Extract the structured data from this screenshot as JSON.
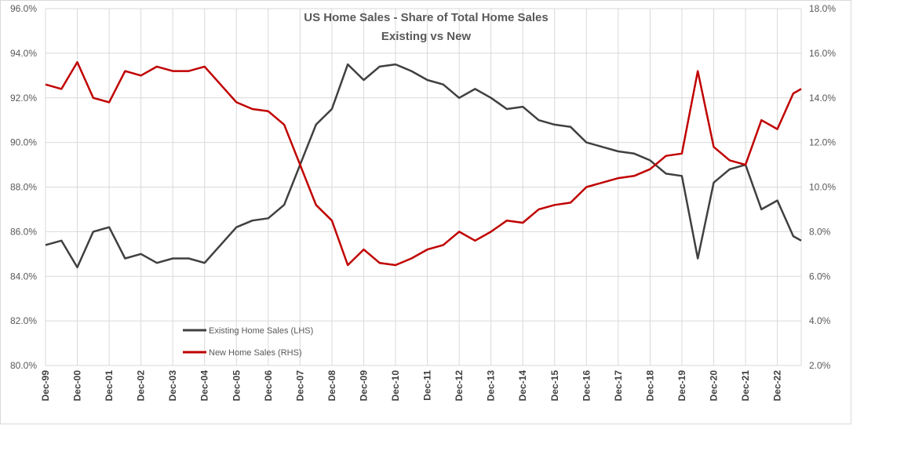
{
  "chart_data": {
    "type": "line",
    "title": "US Home Sales - Share of Total Home Sales",
    "subtitle": "Existing vs New",
    "y_left": {
      "min": 80.0,
      "max": 96.0,
      "step": 2.0,
      "tick_labels": [
        "80.0%",
        "82.0%",
        "84.0%",
        "86.0%",
        "88.0%",
        "90.0%",
        "92.0%",
        "94.0%",
        "96.0%"
      ]
    },
    "y_right": {
      "min": 2.0,
      "max": 18.0,
      "step": 2.0,
      "tick_labels": [
        "2.0%",
        "4.0%",
        "6.0%",
        "8.0%",
        "10.0%",
        "12.0%",
        "14.0%",
        "16.0%",
        "18.0%"
      ]
    },
    "x_start": "Dec-99",
    "x_end": "Sep-23",
    "x_tick_labels": [
      "Dec-99",
      "Dec-00",
      "Dec-01",
      "Dec-02",
      "Dec-03",
      "Dec-04",
      "Dec-05",
      "Dec-06",
      "Dec-07",
      "Dec-08",
      "Dec-09",
      "Dec-10",
      "Dec-11",
      "Dec-12",
      "Dec-13",
      "Dec-14",
      "Dec-15",
      "Dec-16",
      "Dec-17",
      "Dec-18",
      "Dec-19",
      "Dec-20",
      "Dec-21",
      "Dec-22"
    ],
    "grid": true,
    "legend_position": "lower-left inside plot",
    "series": [
      {
        "name": "Existing Home Sales (LHS)",
        "axis": "left",
        "color": "#404040",
        "points": [
          [
            "Dec-99",
            85.4
          ],
          [
            "Jun-00",
            85.6
          ],
          [
            "Dec-00",
            84.4
          ],
          [
            "Jun-01",
            86.0
          ],
          [
            "Dec-01",
            86.2
          ],
          [
            "Jun-02",
            84.8
          ],
          [
            "Dec-02",
            85.0
          ],
          [
            "Jun-03",
            84.6
          ],
          [
            "Dec-03",
            84.8
          ],
          [
            "Jun-04",
            84.8
          ],
          [
            "Dec-04",
            84.6
          ],
          [
            "Jun-05",
            85.4
          ],
          [
            "Dec-05",
            86.2
          ],
          [
            "Jun-06",
            86.5
          ],
          [
            "Dec-06",
            86.6
          ],
          [
            "Jun-07",
            87.2
          ],
          [
            "Dec-07",
            89.0
          ],
          [
            "Jun-08",
            90.8
          ],
          [
            "Dec-08",
            91.5
          ],
          [
            "Jun-09",
            93.5
          ],
          [
            "Dec-09",
            92.8
          ],
          [
            "Jun-10",
            93.4
          ],
          [
            "Dec-10",
            93.5
          ],
          [
            "Jun-11",
            93.2
          ],
          [
            "Dec-11",
            92.8
          ],
          [
            "Jun-12",
            92.6
          ],
          [
            "Dec-12",
            92.0
          ],
          [
            "Jun-13",
            92.4
          ],
          [
            "Dec-13",
            92.0
          ],
          [
            "Jun-14",
            91.5
          ],
          [
            "Dec-14",
            91.6
          ],
          [
            "Jun-15",
            91.0
          ],
          [
            "Dec-15",
            90.8
          ],
          [
            "Jun-16",
            90.7
          ],
          [
            "Dec-16",
            90.0
          ],
          [
            "Jun-17",
            89.8
          ],
          [
            "Dec-17",
            89.6
          ],
          [
            "Jun-18",
            89.5
          ],
          [
            "Dec-18",
            89.2
          ],
          [
            "Jun-19",
            88.6
          ],
          [
            "Dec-19",
            88.5
          ],
          [
            "Jun-20",
            84.8
          ],
          [
            "Dec-20",
            88.2
          ],
          [
            "Jun-21",
            88.8
          ],
          [
            "Dec-21",
            89.0
          ],
          [
            "Jun-22",
            87.0
          ],
          [
            "Dec-22",
            87.4
          ],
          [
            "Jun-23",
            85.8
          ],
          [
            "Sep-23",
            85.6
          ]
        ]
      },
      {
        "name": "New Home Sales (RHS)",
        "axis": "right",
        "color": "#c00000",
        "points": [
          [
            "Dec-99",
            14.6
          ],
          [
            "Jun-00",
            14.4
          ],
          [
            "Dec-00",
            15.6
          ],
          [
            "Jun-01",
            14.0
          ],
          [
            "Dec-01",
            13.8
          ],
          [
            "Jun-02",
            15.2
          ],
          [
            "Dec-02",
            15.0
          ],
          [
            "Jun-03",
            15.4
          ],
          [
            "Dec-03",
            15.2
          ],
          [
            "Jun-04",
            15.2
          ],
          [
            "Dec-04",
            15.4
          ],
          [
            "Jun-05",
            14.6
          ],
          [
            "Dec-05",
            13.8
          ],
          [
            "Jun-06",
            13.5
          ],
          [
            "Dec-06",
            13.4
          ],
          [
            "Jun-07",
            12.8
          ],
          [
            "Dec-07",
            11.0
          ],
          [
            "Jun-08",
            9.2
          ],
          [
            "Dec-08",
            8.5
          ],
          [
            "Jun-09",
            6.5
          ],
          [
            "Dec-09",
            7.2
          ],
          [
            "Jun-10",
            6.6
          ],
          [
            "Dec-10",
            6.5
          ],
          [
            "Jun-11",
            6.8
          ],
          [
            "Dec-11",
            7.2
          ],
          [
            "Jun-12",
            7.4
          ],
          [
            "Dec-12",
            8.0
          ],
          [
            "Jun-13",
            7.6
          ],
          [
            "Dec-13",
            8.0
          ],
          [
            "Jun-14",
            8.5
          ],
          [
            "Dec-14",
            8.4
          ],
          [
            "Jun-15",
            9.0
          ],
          [
            "Dec-15",
            9.2
          ],
          [
            "Jun-16",
            9.3
          ],
          [
            "Dec-16",
            10.0
          ],
          [
            "Jun-17",
            10.2
          ],
          [
            "Dec-17",
            10.4
          ],
          [
            "Jun-18",
            10.5
          ],
          [
            "Dec-18",
            10.8
          ],
          [
            "Jun-19",
            11.4
          ],
          [
            "Dec-19",
            11.5
          ],
          [
            "Jun-20",
            15.2
          ],
          [
            "Dec-20",
            11.8
          ],
          [
            "Jun-21",
            11.2
          ],
          [
            "Dec-21",
            11.0
          ],
          [
            "Jun-22",
            13.0
          ],
          [
            "Dec-22",
            12.6
          ],
          [
            "Jun-23",
            14.2
          ],
          [
            "Sep-23",
            14.4
          ]
        ]
      }
    ]
  }
}
